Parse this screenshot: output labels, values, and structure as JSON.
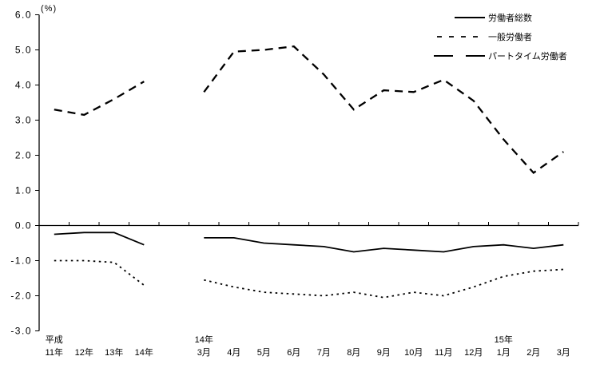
{
  "chart_data": {
    "type": "line",
    "title": "",
    "unit_label": "(%)",
    "ylabel": "%",
    "ylim": [
      -3.0,
      6.0
    ],
    "ytick_labels": [
      "6.0",
      "5.0",
      "4.0",
      "3.0",
      "2.0",
      "1.0",
      "0.0",
      "-1.0",
      "-2.0",
      "-3.0"
    ],
    "grid": false,
    "legend_position": "top-right",
    "line_color": "#000000",
    "categories": [
      "平成11年",
      "12年",
      "13年",
      "14年",
      "",
      "14年3月",
      "4月",
      "5月",
      "6月",
      "7月",
      "8月",
      "9月",
      "10月",
      "11月",
      "12月",
      "15年1月",
      "2月",
      "3月"
    ],
    "x_labels_row1": [
      "平成",
      "",
      "",
      "",
      "",
      "14年",
      "",
      "",
      "",
      "",
      "",
      "",
      "",
      "",
      "",
      "15年",
      "",
      ""
    ],
    "x_labels_row2": [
      "11年",
      "12年",
      "13年",
      "14年",
      "",
      "3月",
      "4月",
      "5月",
      "6月",
      "7月",
      "8月",
      "9月",
      "10月",
      "11月",
      "12月",
      "1月",
      "2月",
      "3月"
    ],
    "series": [
      {
        "name": "労働者総数",
        "style": "solid",
        "values": [
          -0.25,
          -0.2,
          -0.2,
          -0.55,
          null,
          -0.35,
          -0.35,
          -0.5,
          -0.55,
          -0.6,
          -0.75,
          -0.65,
          -0.7,
          -0.75,
          -0.6,
          -0.55,
          -0.65,
          -0.55
        ]
      },
      {
        "name": "一般労働者",
        "style": "dotted",
        "values": [
          -1.0,
          -1.0,
          -1.05,
          -1.7,
          null,
          -1.55,
          -1.75,
          -1.9,
          -1.95,
          -2.0,
          -1.9,
          -2.05,
          -1.9,
          -2.0,
          -1.75,
          -1.45,
          -1.3,
          -1.25
        ]
      },
      {
        "name": "パートタイム労働者",
        "style": "dashed",
        "values": [
          3.3,
          3.15,
          3.6,
          4.1,
          null,
          3.8,
          4.95,
          5.0,
          5.1,
          4.3,
          3.3,
          3.85,
          3.8,
          4.15,
          3.55,
          2.45,
          1.5,
          2.1
        ]
      }
    ]
  }
}
